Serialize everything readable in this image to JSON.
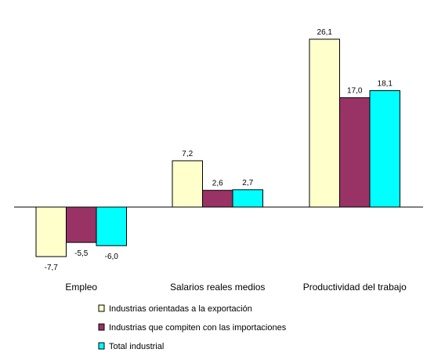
{
  "chart_data": {
    "type": "bar",
    "categories": [
      "Empleo",
      "Salarios reales medios",
      "Productividad del trabajo"
    ],
    "series": [
      {
        "name": "Industrias orientadas a la exportación",
        "values": [
          -7.7,
          7.2,
          26.1
        ],
        "labels": [
          "-7,7",
          "7,2",
          "26,1"
        ],
        "color": "#ffffcc"
      },
      {
        "name": "Industrias que compiten con las importaciones",
        "values": [
          -5.5,
          2.6,
          17.0
        ],
        "labels": [
          "-5,5",
          "2,6",
          "17,0"
        ],
        "color": "#993366"
      },
      {
        "name": "Total industrial",
        "values": [
          -6.0,
          2.7,
          18.1
        ],
        "labels": [
          "-6,0",
          "2,7",
          "18,1"
        ],
        "color": "#00ffff"
      }
    ],
    "legend_position": "bottom-left",
    "grid": false
  }
}
